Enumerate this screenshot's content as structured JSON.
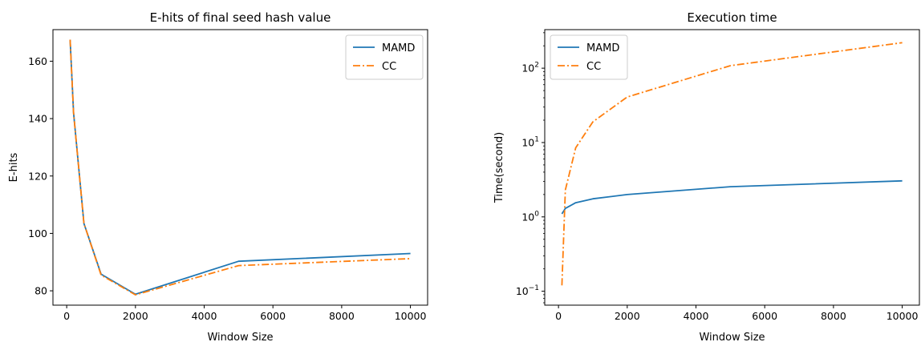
{
  "chart_data": [
    {
      "type": "line",
      "title": "E-hits of final seed hash value",
      "xlabel": "Window Size",
      "ylabel": "E-hits",
      "x": [
        100,
        200,
        500,
        1000,
        2000,
        5000,
        10000
      ],
      "series": [
        {
          "name": "MAMD",
          "color": "#1f77b4",
          "style": "solid",
          "values": [
            167.5,
            142,
            103.5,
            85.8,
            78.8,
            90.3,
            93.0
          ]
        },
        {
          "name": "CC",
          "color": "#ff7f0e",
          "style": "dashdot",
          "values": [
            167.5,
            142,
            103.5,
            85.5,
            78.6,
            88.8,
            91.2
          ]
        }
      ],
      "xlim": [
        -400,
        10500
      ],
      "ylim": [
        75,
        171
      ],
      "xticks": [
        0,
        2000,
        4000,
        6000,
        8000,
        10000
      ],
      "xtick_labels": [
        "0",
        "2000",
        "4000",
        "6000",
        "8000",
        "10000"
      ],
      "yticks": [
        80,
        100,
        120,
        140,
        160
      ],
      "ytick_labels": [
        "80",
        "100",
        "120",
        "140",
        "160"
      ],
      "legend_position": "top-right",
      "grid": false
    },
    {
      "type": "line",
      "title": "Execution time",
      "xlabel": "Window Size",
      "ylabel": "Time(second)",
      "yscale": "log",
      "x": [
        100,
        200,
        500,
        1000,
        2000,
        5000,
        10000
      ],
      "series": [
        {
          "name": "MAMD",
          "color": "#1f77b4",
          "style": "solid",
          "values": [
            1.1,
            1.3,
            1.55,
            1.75,
            2.0,
            2.55,
            3.05
          ]
        },
        {
          "name": "CC",
          "color": "#ff7f0e",
          "style": "dashdot",
          "values": [
            0.12,
            2.3,
            8.5,
            19,
            41,
            108,
            220
          ]
        }
      ],
      "xlim": [
        -400,
        10500
      ],
      "ylim": [
        0.065,
        330
      ],
      "xticks": [
        0,
        2000,
        4000,
        6000,
        8000,
        10000
      ],
      "xtick_labels": [
        "0",
        "2000",
        "4000",
        "6000",
        "8000",
        "10000"
      ],
      "yticks": [
        0.1,
        1,
        10,
        100
      ],
      "ytick_base": "10",
      "ytick_exponents": [
        "−1",
        "0",
        "1",
        "2"
      ],
      "legend_position": "top-left",
      "grid": false
    }
  ]
}
